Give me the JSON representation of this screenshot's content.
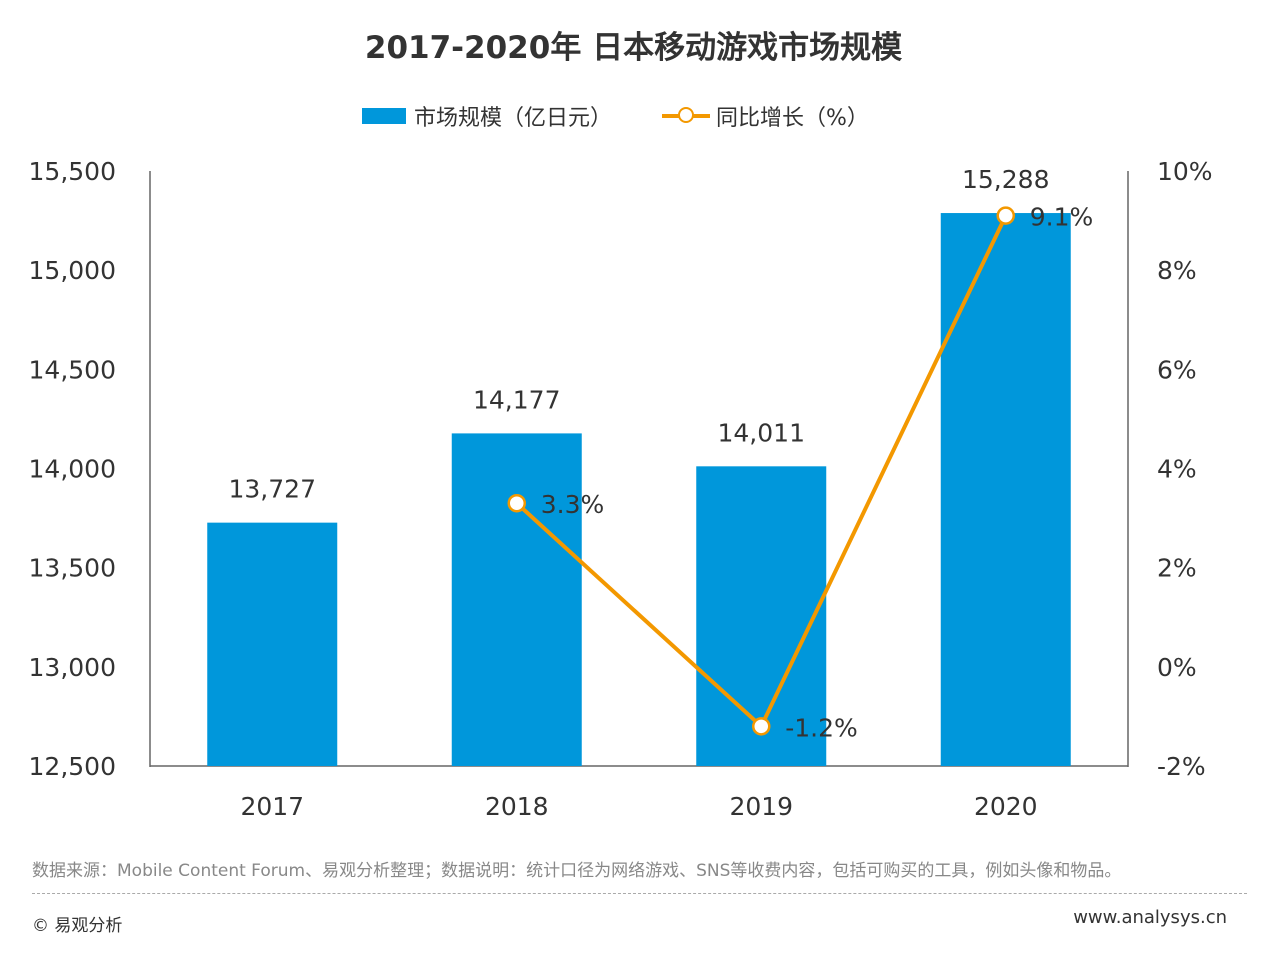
{
  "chart_data": {
    "type": "bar+line",
    "title": "2017-2020年 日本移动游戏市场规模",
    "categories": [
      "2017",
      "2018",
      "2019",
      "2020"
    ],
    "series": [
      {
        "name": "市场规模（亿日元）",
        "type": "bar",
        "axis": "left",
        "values": [
          13727,
          14177,
          14011,
          15288
        ],
        "labels": [
          "13,727",
          "14,177",
          "14,011",
          "15,288"
        ],
        "color": "#0097DB"
      },
      {
        "name": "同比增长（%）",
        "type": "line",
        "axis": "right",
        "values": [
          null,
          3.3,
          -1.2,
          9.1
        ],
        "labels": [
          "",
          "3.3%",
          "-1.2%",
          "9.1%"
        ],
        "color": "#F39800"
      }
    ],
    "left_axis": {
      "range": [
        12500,
        15500
      ],
      "ticks": [
        "12,500",
        "13,000",
        "13,500",
        "14,000",
        "14,500",
        "15,000",
        "15,500"
      ]
    },
    "right_axis": {
      "range": [
        -2,
        10
      ],
      "ticks": [
        "-2%",
        "0%",
        "2%",
        "4%",
        "6%",
        "8%",
        "10%"
      ]
    },
    "grid": false,
    "legend": "top"
  },
  "footer": {
    "note": "数据来源：Mobile Content Forum、易观分析整理；数据说明：统计口径为网络游戏、SNS等收费内容，包括可购买的工具，例如头像和物品。",
    "copyright": "© 易观分析",
    "site": "www.analysys.cn"
  }
}
